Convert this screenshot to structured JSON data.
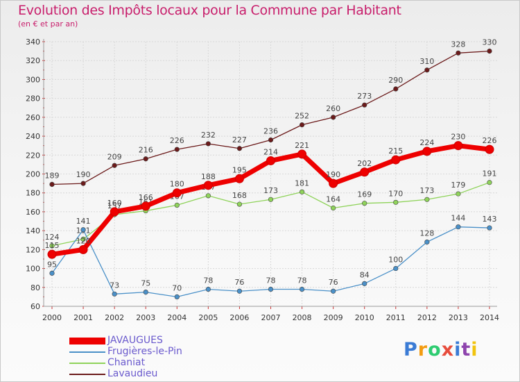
{
  "header": {
    "title": "Evolution des Impôts locaux pour la Commune par Habitant",
    "subtitle": "(en € et par an)"
  },
  "logo": {
    "text": "Proxiti"
  },
  "chart_data": {
    "type": "line",
    "x": [
      "2000",
      "2001",
      "2002",
      "2003",
      "2004",
      "2005",
      "2006",
      "2007",
      "2008",
      "2009",
      "2010",
      "2011",
      "2012",
      "2013",
      "2014"
    ],
    "ylim": [
      60,
      340
    ],
    "yticks": [
      60,
      80,
      100,
      120,
      140,
      160,
      180,
      200,
      220,
      240,
      260,
      280,
      300,
      320,
      340
    ],
    "grid": true,
    "legend_position": "bottom-left",
    "series": [
      {
        "name": "Lavaudieu",
        "color": "#6b1a1a",
        "values": [
          189,
          190,
          209,
          216,
          226,
          232,
          227,
          236,
          252,
          260,
          273,
          290,
          310,
          328,
          330
        ]
      },
      {
        "name": "Chaniat",
        "color": "#8fd35a",
        "values": [
          124,
          131,
          157,
          161,
          167,
          177,
          168,
          173,
          181,
          164,
          169,
          170,
          173,
          179,
          191
        ]
      },
      {
        "name": "Frugières-le-Pin",
        "color": "#4a90c8",
        "values": [
          95,
          141,
          73,
          75,
          70,
          78,
          76,
          78,
          78,
          76,
          84,
          100,
          128,
          144,
          143
        ]
      },
      {
        "name": "JAVAUGUES",
        "color": "#ee0000",
        "values": [
          115,
          120,
          160,
          166,
          180,
          188,
          195,
          214,
          221,
          190,
          202,
          215,
          224,
          230,
          226
        ]
      }
    ]
  }
}
